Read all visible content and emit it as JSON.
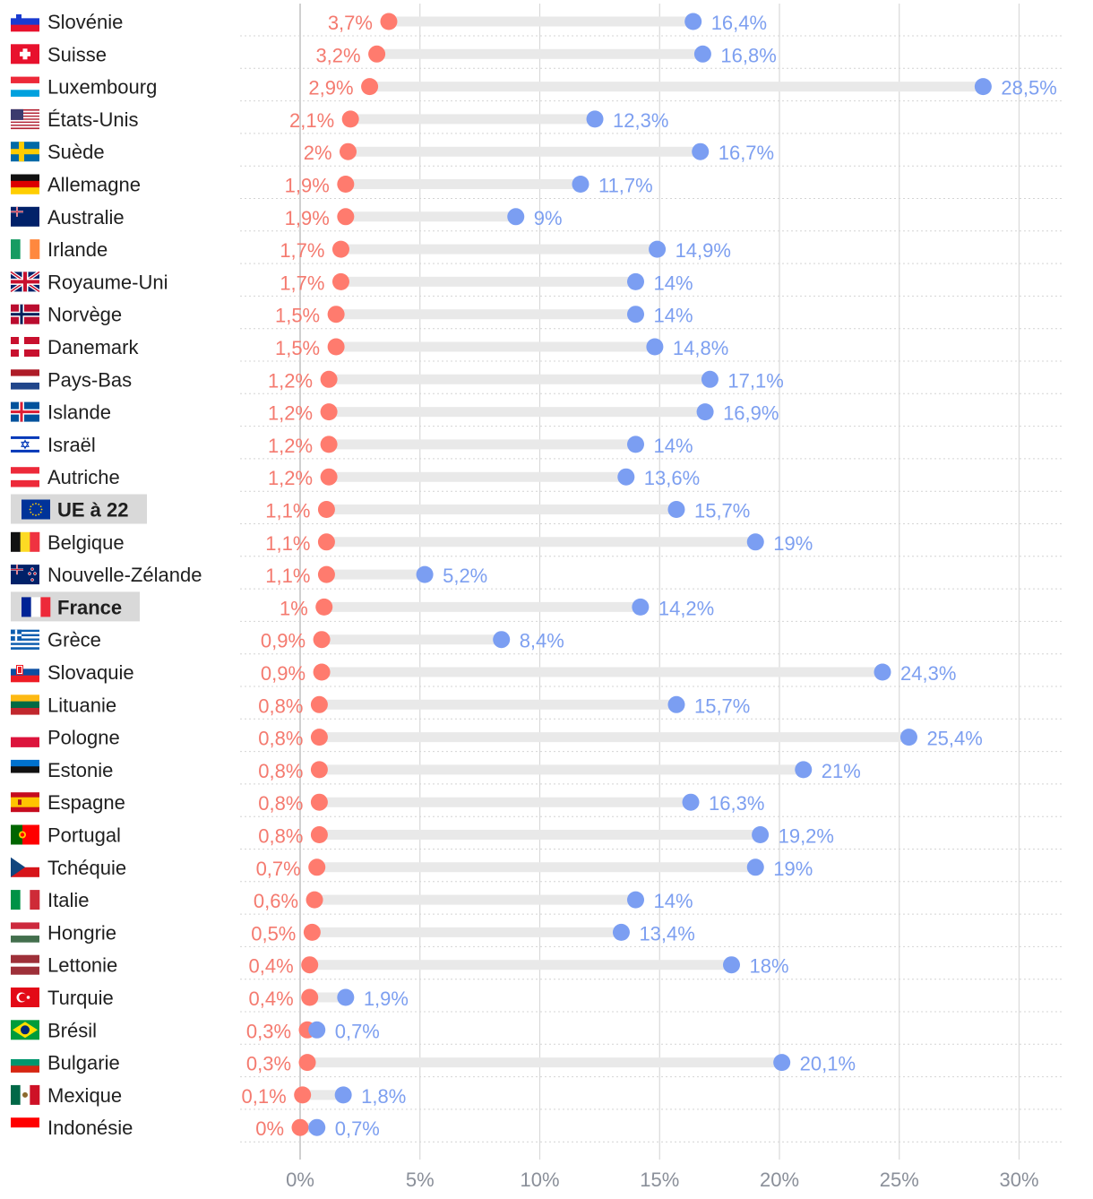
{
  "chart_data": {
    "type": "dot-range",
    "title": "",
    "xlabel": "",
    "ylabel": "",
    "xlim": [
      0,
      30
    ],
    "x_ticks": [
      "0%",
      "5%",
      "10%",
      "15%",
      "20%",
      "25%",
      "30%"
    ],
    "x_tick_values": [
      0,
      5,
      10,
      15,
      20,
      25,
      30
    ],
    "grid": true,
    "colors": {
      "series_low": "#ff7b6e",
      "series_high": "#7b9ef2",
      "track": "#e9e9e9",
      "grid": "#d9d9d9",
      "highlight_bg": "#d9d9d9"
    },
    "series_names": [
      "rouge",
      "bleu"
    ],
    "rows": [
      {
        "country": "Slovénie",
        "flag": "flag-slovenia",
        "low": 3.7,
        "low_label": "3,7%",
        "high": 16.4,
        "high_label": "16,4%"
      },
      {
        "country": "Suisse",
        "flag": "flag-switzerland",
        "low": 3.2,
        "low_label": "3,2%",
        "high": 16.8,
        "high_label": "16,8%"
      },
      {
        "country": "Luxembourg",
        "flag": "flag-luxembourg",
        "low": 2.9,
        "low_label": "2,9%",
        "high": 28.5,
        "high_label": "28,5%"
      },
      {
        "country": "États-Unis",
        "flag": "flag-usa",
        "low": 2.1,
        "low_label": "2,1%",
        "high": 12.3,
        "high_label": "12,3%"
      },
      {
        "country": "Suède",
        "flag": "flag-sweden",
        "low": 2.0,
        "low_label": "2%",
        "high": 16.7,
        "high_label": "16,7%"
      },
      {
        "country": "Allemagne",
        "flag": "flag-germany",
        "low": 1.9,
        "low_label": "1,9%",
        "high": 11.7,
        "high_label": "11,7%"
      },
      {
        "country": "Australie",
        "flag": "flag-australia",
        "low": 1.9,
        "low_label": "1,9%",
        "high": 9.0,
        "high_label": "9%"
      },
      {
        "country": "Irlande",
        "flag": "flag-ireland",
        "low": 1.7,
        "low_label": "1,7%",
        "high": 14.9,
        "high_label": "14,9%"
      },
      {
        "country": "Royaume-Uni",
        "flag": "flag-uk",
        "low": 1.7,
        "low_label": "1,7%",
        "high": 14.0,
        "high_label": "14%"
      },
      {
        "country": "Norvège",
        "flag": "flag-norway",
        "low": 1.5,
        "low_label": "1,5%",
        "high": 14.0,
        "high_label": "14%"
      },
      {
        "country": "Danemark",
        "flag": "flag-denmark",
        "low": 1.5,
        "low_label": "1,5%",
        "high": 14.8,
        "high_label": "14,8%"
      },
      {
        "country": "Pays-Bas",
        "flag": "flag-netherlands",
        "low": 1.2,
        "low_label": "1,2%",
        "high": 17.1,
        "high_label": "17,1%"
      },
      {
        "country": "Islande",
        "flag": "flag-iceland",
        "low": 1.2,
        "low_label": "1,2%",
        "high": 16.9,
        "high_label": "16,9%"
      },
      {
        "country": "Israël",
        "flag": "flag-israel",
        "low": 1.2,
        "low_label": "1,2%",
        "high": 14.0,
        "high_label": "14%"
      },
      {
        "country": "Autriche",
        "flag": "flag-austria",
        "low": 1.2,
        "low_label": "1,2%",
        "high": 13.6,
        "high_label": "13,6%"
      },
      {
        "country": "UE à 22",
        "flag": "flag-eu",
        "low": 1.1,
        "low_label": "1,1%",
        "high": 15.7,
        "high_label": "15,7%",
        "highlight": true
      },
      {
        "country": "Belgique",
        "flag": "flag-belgium",
        "low": 1.1,
        "low_label": "1,1%",
        "high": 19.0,
        "high_label": "19%"
      },
      {
        "country": "Nouvelle-Zélande",
        "flag": "flag-new-zealand",
        "low": 1.1,
        "low_label": "1,1%",
        "high": 5.2,
        "high_label": "5,2%"
      },
      {
        "country": "France",
        "flag": "flag-france",
        "low": 1.0,
        "low_label": "1%",
        "high": 14.2,
        "high_label": "14,2%",
        "highlight": true
      },
      {
        "country": "Grèce",
        "flag": "flag-greece",
        "low": 0.9,
        "low_label": "0,9%",
        "high": 8.4,
        "high_label": "8,4%"
      },
      {
        "country": "Slovaquie",
        "flag": "flag-slovakia",
        "low": 0.9,
        "low_label": "0,9%",
        "high": 24.3,
        "high_label": "24,3%"
      },
      {
        "country": "Lituanie",
        "flag": "flag-lithuania",
        "low": 0.8,
        "low_label": "0,8%",
        "high": 15.7,
        "high_label": "15,7%"
      },
      {
        "country": "Pologne",
        "flag": "flag-poland",
        "low": 0.8,
        "low_label": "0,8%",
        "high": 25.4,
        "high_label": "25,4%"
      },
      {
        "country": "Estonie",
        "flag": "flag-estonia",
        "low": 0.8,
        "low_label": "0,8%",
        "high": 21.0,
        "high_label": "21%"
      },
      {
        "country": "Espagne",
        "flag": "flag-spain",
        "low": 0.8,
        "low_label": "0,8%",
        "high": 16.3,
        "high_label": "16,3%"
      },
      {
        "country": "Portugal",
        "flag": "flag-portugal",
        "low": 0.8,
        "low_label": "0,8%",
        "high": 19.2,
        "high_label": "19,2%"
      },
      {
        "country": "Tchéquie",
        "flag": "flag-czechia",
        "low": 0.7,
        "low_label": "0,7%",
        "high": 19.0,
        "high_label": "19%"
      },
      {
        "country": "Italie",
        "flag": "flag-italy",
        "low": 0.6,
        "low_label": "0,6%",
        "high": 14.0,
        "high_label": "14%"
      },
      {
        "country": "Hongrie",
        "flag": "flag-hungary",
        "low": 0.5,
        "low_label": "0,5%",
        "high": 13.4,
        "high_label": "13,4%"
      },
      {
        "country": "Lettonie",
        "flag": "flag-latvia",
        "low": 0.4,
        "low_label": "0,4%",
        "high": 18.0,
        "high_label": "18%"
      },
      {
        "country": "Turquie",
        "flag": "flag-turkey",
        "low": 0.4,
        "low_label": "0,4%",
        "high": 1.9,
        "high_label": "1,9%"
      },
      {
        "country": "Brésil",
        "flag": "flag-brazil",
        "low": 0.3,
        "low_label": "0,3%",
        "high": 0.7,
        "high_label": "0,7%"
      },
      {
        "country": "Bulgarie",
        "flag": "flag-bulgaria",
        "low": 0.3,
        "low_label": "0,3%",
        "high": 20.1,
        "high_label": "20,1%"
      },
      {
        "country": "Mexique",
        "flag": "flag-mexico",
        "low": 0.1,
        "low_label": "0,1%",
        "high": 1.8,
        "high_label": "1,8%"
      },
      {
        "country": "Indonésie",
        "flag": "flag-indonesia",
        "low": 0.0,
        "low_label": "0%",
        "high": 0.7,
        "high_label": "0,7%"
      }
    ]
  }
}
